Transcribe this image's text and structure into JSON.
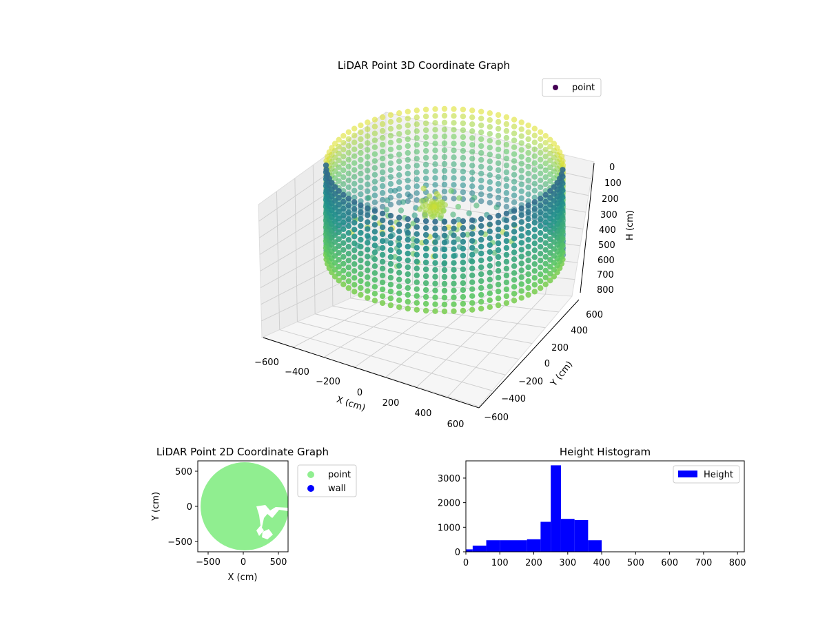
{
  "colors": {
    "bar": "#0000ff",
    "point2d": "#90ee90",
    "wall2d": "#0000ff",
    "pane": "#f2f2f2",
    "grid": "#cfcfcf",
    "colormap": [
      "#440154",
      "#3b528b",
      "#21918c",
      "#5ec962",
      "#fde725"
    ]
  },
  "chart_data": [
    {
      "type": "scatter",
      "title": "LiDAR Point 3D Coordinate Graph",
      "xlabel": "X (cm)",
      "ylabel": "Y (cm)",
      "zlabel": "H (cm)",
      "xlim": [
        -650,
        650
      ],
      "ylim": [
        -650,
        650
      ],
      "zlim": [
        0,
        800
      ],
      "z_inverted": true,
      "x_ticks": [
        "−600",
        "−400",
        "−200",
        "0",
        "200",
        "400",
        "600"
      ],
      "y_ticks": [
        "−600",
        "−400",
        "−200",
        "0",
        "200",
        "400",
        "600"
      ],
      "z_ticks": [
        "0",
        "100",
        "200",
        "300",
        "400",
        "500",
        "600",
        "700",
        "800"
      ],
      "legend": [
        "point"
      ],
      "legend_position": "top-right",
      "colormap": "viridis",
      "color_by": "height",
      "description_data": {
        "wall_radius": 600,
        "wall_height_range": [
          20,
          400
        ],
        "center": [
          0,
          0
        ]
      }
    },
    {
      "type": "scatter",
      "title": "LiDAR Point 2D Coordinate Graph",
      "xlabel": "X (cm)",
      "ylabel": "Y (cm)",
      "xlim": [
        -650,
        650
      ],
      "ylim": [
        -650,
        650
      ],
      "x_ticks": [
        "−500",
        "0",
        "500"
      ],
      "y_ticks": [
        "−500",
        "0",
        "500"
      ],
      "legend": [
        "point",
        "wall"
      ],
      "legend_position": "outside-right"
    },
    {
      "type": "bar",
      "title": "Height Histogram",
      "xlabel": "",
      "ylabel": "",
      "bin_edges": [
        0,
        20,
        60,
        100,
        180,
        220,
        250,
        280,
        320,
        360,
        400
      ],
      "values": [
        100,
        250,
        470,
        470,
        510,
        1220,
        3520,
        1340,
        1290,
        470
      ],
      "xlim": [
        0,
        820
      ],
      "ylim": [
        0,
        3700
      ],
      "x_ticks": [
        "0",
        "100",
        "200",
        "300",
        "400",
        "500",
        "600",
        "700",
        "800"
      ],
      "y_ticks": [
        "0",
        "1000",
        "2000",
        "3000"
      ],
      "legend": [
        "Height"
      ],
      "legend_position": "top-right"
    }
  ]
}
